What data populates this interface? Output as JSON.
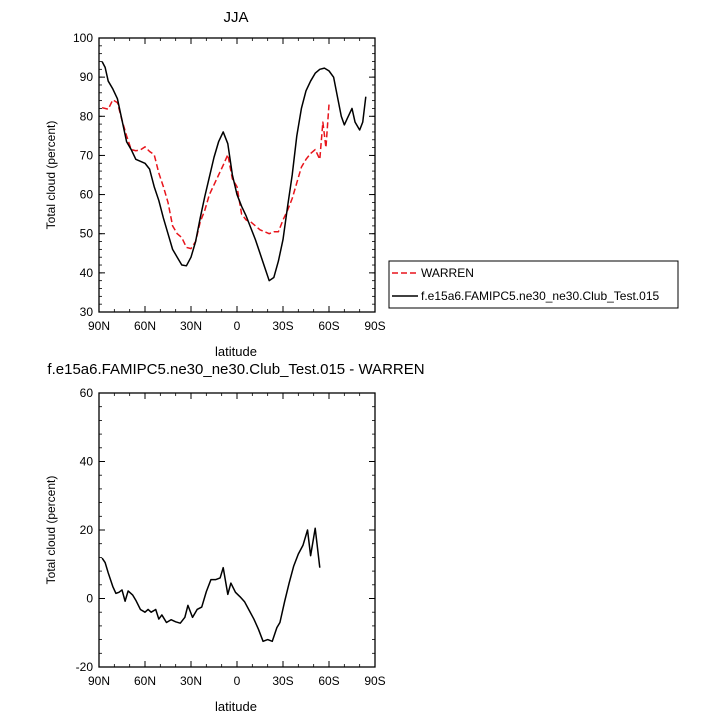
{
  "colors": {
    "warren": "#e8141b",
    "model": "#000000",
    "axis": "#000000",
    "legend_border": "#000000"
  },
  "chart_data": [
    {
      "type": "line",
      "title": "JJA",
      "xlabel": "latitude",
      "ylabel": "Total cloud (percent)",
      "xlim": [
        90,
        -90
      ],
      "ylim": [
        30,
        100
      ],
      "xticks": [
        {
          "value": 90,
          "label": "90N"
        },
        {
          "value": 60,
          "label": "60N"
        },
        {
          "value": 30,
          "label": "30N"
        },
        {
          "value": 0,
          "label": "0"
        },
        {
          "value": -30,
          "label": "30S"
        },
        {
          "value": -60,
          "label": "60S"
        },
        {
          "value": -90,
          "label": "90S"
        }
      ],
      "yticks": [
        30,
        40,
        50,
        60,
        70,
        80,
        90,
        100
      ],
      "legend_placement": "right",
      "series": [
        {
          "name": "WARREN",
          "style": "dashed",
          "color": "#e8141b",
          "points": [
            [
              88,
              82.2
            ],
            [
              84,
              81.8
            ],
            [
              81,
              84.2
            ],
            [
              78,
              83.5
            ],
            [
              75,
              79
            ],
            [
              72,
              75
            ],
            [
              69,
              71.5
            ],
            [
              66,
              71.2
            ],
            [
              63,
              71.4
            ],
            [
              60,
              72.2
            ],
            [
              57,
              71
            ],
            [
              54,
              70.2
            ],
            [
              51,
              65.5
            ],
            [
              48,
              62
            ],
            [
              45,
              58
            ],
            [
              42,
              52
            ],
            [
              39,
              50
            ],
            [
              36,
              49
            ],
            [
              33,
              46.5
            ],
            [
              30,
              46.2
            ],
            [
              27,
              48
            ],
            [
              24,
              53
            ],
            [
              21,
              56
            ],
            [
              18,
              60
            ],
            [
              15,
              62.5
            ],
            [
              12,
              65
            ],
            [
              9,
              67.5
            ],
            [
              6,
              70.2
            ],
            [
              3,
              64
            ],
            [
              0,
              62
            ],
            [
              -3,
              55
            ],
            [
              -6,
              53.5
            ],
            [
              -9,
              53
            ],
            [
              -12,
              52
            ],
            [
              -15,
              51
            ],
            [
              -18,
              50.5
            ],
            [
              -21,
              50
            ],
            [
              -24,
              50.5
            ],
            [
              -27,
              50.5
            ],
            [
              -30,
              53.5
            ],
            [
              -33,
              56
            ],
            [
              -36,
              59
            ],
            [
              -39,
              63
            ],
            [
              -42,
              67
            ],
            [
              -45,
              69
            ],
            [
              -48,
              70.5
            ],
            [
              -51,
              71.5
            ],
            [
              -54,
              69
            ],
            [
              -56,
              78.5
            ],
            [
              -58,
              72
            ],
            [
              -60,
              83
            ]
          ]
        },
        {
          "name": "f.e15a6.FAMIPC5.ne30_ne30.Club_Test.015",
          "style": "solid",
          "color": "#000000",
          "points": [
            [
              88,
              94
            ],
            [
              86,
              92.5
            ],
            [
              84,
              89
            ],
            [
              81,
              87
            ],
            [
              78,
              84.5
            ],
            [
              75,
              79
            ],
            [
              72,
              73.5
            ],
            [
              69,
              71.5
            ],
            [
              66,
              69
            ],
            [
              63,
              68.5
            ],
            [
              60,
              68
            ],
            [
              57,
              66.5
            ],
            [
              54,
              62
            ],
            [
              51,
              58.5
            ],
            [
              48,
              54
            ],
            [
              45,
              50
            ],
            [
              42,
              46
            ],
            [
              39,
              44
            ],
            [
              36,
              42
            ],
            [
              33,
              41.8
            ],
            [
              30,
              44
            ],
            [
              27,
              48
            ],
            [
              24,
              54
            ],
            [
              21,
              59.5
            ],
            [
              18,
              64.5
            ],
            [
              15,
              69.5
            ],
            [
              12,
              73.5
            ],
            [
              9,
              76
            ],
            [
              6,
              73
            ],
            [
              3,
              65
            ],
            [
              0,
              60
            ],
            [
              -3,
              57
            ],
            [
              -6,
              54.5
            ],
            [
              -9,
              51.5
            ],
            [
              -12,
              48.5
            ],
            [
              -15,
              45
            ],
            [
              -18,
              41.5
            ],
            [
              -21,
              38
            ],
            [
              -24,
              38.8
            ],
            [
              -27,
              43
            ],
            [
              -30,
              48.5
            ],
            [
              -33,
              57
            ],
            [
              -36,
              65
            ],
            [
              -39,
              75
            ],
            [
              -42,
              82
            ],
            [
              -45,
              86.5
            ],
            [
              -48,
              89
            ],
            [
              -51,
              91
            ],
            [
              -54,
              92
            ],
            [
              -57,
              92.3
            ],
            [
              -60,
              91.6
            ],
            [
              -63,
              90
            ],
            [
              -66,
              84
            ],
            [
              -68,
              80
            ],
            [
              -70,
              77.8
            ],
            [
              -72,
              79.5
            ],
            [
              -75,
              82
            ],
            [
              -77,
              78.5
            ],
            [
              -80,
              76.5
            ],
            [
              -82,
              78.5
            ],
            [
              -84,
              85
            ]
          ]
        }
      ]
    },
    {
      "type": "line",
      "title": "f.e15a6.FAMIPC5.ne30_ne30.Club_Test.015 - WARREN",
      "xlabel": "latitude",
      "ylabel": "Total cloud (percent)",
      "xlim": [
        90,
        -90
      ],
      "ylim": [
        -20,
        60
      ],
      "xticks": [
        {
          "value": 90,
          "label": "90N"
        },
        {
          "value": 60,
          "label": "60N"
        },
        {
          "value": 30,
          "label": "30N"
        },
        {
          "value": 0,
          "label": "0"
        },
        {
          "value": -30,
          "label": "30S"
        },
        {
          "value": -60,
          "label": "60S"
        },
        {
          "value": -90,
          "label": "90S"
        }
      ],
      "yticks": [
        -20,
        0,
        20,
        40,
        60
      ],
      "series": [
        {
          "style": "solid",
          "color": "#000000",
          "points": [
            [
              88,
              11.8
            ],
            [
              86,
              10.5
            ],
            [
              84,
              7.5
            ],
            [
              81,
              3.5
            ],
            [
              79,
              1.5
            ],
            [
              77,
              1.8
            ],
            [
              75,
              2.5
            ],
            [
              73,
              -0.8
            ],
            [
              71,
              2.2
            ],
            [
              68,
              1
            ],
            [
              66,
              -0.5
            ],
            [
              63,
              -3.2
            ],
            [
              60,
              -4
            ],
            [
              58,
              -3.2
            ],
            [
              56,
              -4
            ],
            [
              53,
              -3.2
            ],
            [
              51,
              -6
            ],
            [
              49,
              -4.8
            ],
            [
              46,
              -7
            ],
            [
              43,
              -6.2
            ],
            [
              40,
              -6.8
            ],
            [
              37,
              -7.2
            ],
            [
              34,
              -5.5
            ],
            [
              32,
              -2
            ],
            [
              29,
              -5.5
            ],
            [
              26,
              -3.2
            ],
            [
              23,
              -2.5
            ],
            [
              20,
              2
            ],
            [
              17,
              5.5
            ],
            [
              14,
              5.5
            ],
            [
              11,
              6
            ],
            [
              9,
              9
            ],
            [
              6,
              1.2
            ],
            [
              4,
              4.5
            ],
            [
              1,
              1.8
            ],
            [
              -2,
              0.5
            ],
            [
              -5,
              -1
            ],
            [
              -8,
              -3.5
            ],
            [
              -11,
              -6
            ],
            [
              -14,
              -9
            ],
            [
              -17,
              -12.5
            ],
            [
              -20,
              -12
            ],
            [
              -23,
              -12.5
            ],
            [
              -26,
              -8.5
            ],
            [
              -28,
              -7
            ],
            [
              -31,
              -1
            ],
            [
              -34,
              4.5
            ],
            [
              -37,
              9.5
            ],
            [
              -40,
              13
            ],
            [
              -43,
              15.5
            ],
            [
              -46,
              20
            ],
            [
              -48,
              12.5
            ],
            [
              -51,
              20.5
            ],
            [
              -54,
              9
            ]
          ]
        }
      ]
    }
  ]
}
